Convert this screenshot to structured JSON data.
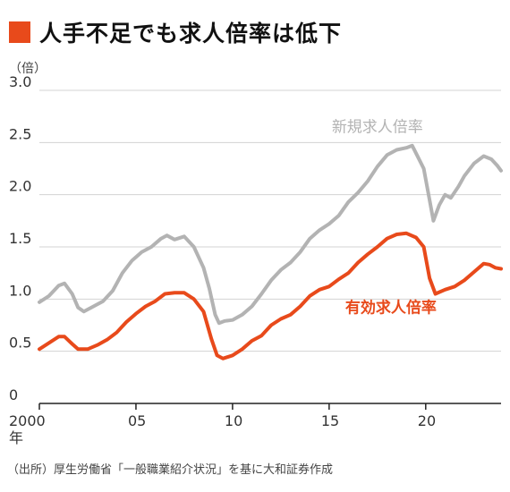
{
  "title": "人手不足でも求人倍率は低下",
  "unit": "（倍）",
  "source": "（出所）厚生労働省「一般職業紹介状況」を基に大和証券作成",
  "colors": {
    "accent": "#e84a1b",
    "gray": "#b3b3b3",
    "grid": "#d3d3d3",
    "axis": "#222222",
    "tick_text": "#333333"
  },
  "chart_data": {
    "type": "line",
    "title": "人手不足でも求人倍率は低下",
    "ylabel": "（倍）",
    "xlabel": "",
    "xlim": [
      2000,
      2023.9
    ],
    "ylim": [
      0,
      3.0
    ],
    "grid": true,
    "y_ticks": [
      {
        "value": 0,
        "label": "0"
      },
      {
        "value": 0.5,
        "label": "0.5"
      },
      {
        "value": 1.0,
        "label": "1.0"
      },
      {
        "value": 1.5,
        "label": "1.5"
      },
      {
        "value": 2.0,
        "label": "2.0"
      },
      {
        "value": 2.5,
        "label": "2.5"
      },
      {
        "value": 3.0,
        "label": "3.0"
      }
    ],
    "x_ticks": [
      {
        "value": 2000,
        "label": "2000",
        "sublabel": "年"
      },
      {
        "value": 2005,
        "label": "05"
      },
      {
        "value": 2010,
        "label": "10"
      },
      {
        "value": 2015,
        "label": "15"
      },
      {
        "value": 2020,
        "label": "20"
      }
    ],
    "series": [
      {
        "name": "新規求人倍率",
        "color": "#b3b3b3",
        "label_anchor": [
          2017.5,
          2.6
        ],
        "points": [
          [
            2000.0,
            0.97
          ],
          [
            2000.5,
            1.03
          ],
          [
            2001.0,
            1.13
          ],
          [
            2001.3,
            1.15
          ],
          [
            2001.7,
            1.05
          ],
          [
            2002.0,
            0.92
          ],
          [
            2002.3,
            0.88
          ],
          [
            2002.8,
            0.93
          ],
          [
            2003.3,
            0.98
          ],
          [
            2003.8,
            1.08
          ],
          [
            2004.3,
            1.25
          ],
          [
            2004.8,
            1.37
          ],
          [
            2005.3,
            1.45
          ],
          [
            2005.8,
            1.5
          ],
          [
            2006.3,
            1.58
          ],
          [
            2006.6,
            1.61
          ],
          [
            2007.0,
            1.57
          ],
          [
            2007.5,
            1.6
          ],
          [
            2008.0,
            1.5
          ],
          [
            2008.5,
            1.3
          ],
          [
            2008.8,
            1.1
          ],
          [
            2009.1,
            0.85
          ],
          [
            2009.3,
            0.77
          ],
          [
            2009.6,
            0.79
          ],
          [
            2010.0,
            0.8
          ],
          [
            2010.5,
            0.85
          ],
          [
            2011.0,
            0.93
          ],
          [
            2011.5,
            1.05
          ],
          [
            2012.0,
            1.18
          ],
          [
            2012.5,
            1.28
          ],
          [
            2013.0,
            1.35
          ],
          [
            2013.5,
            1.45
          ],
          [
            2014.0,
            1.58
          ],
          [
            2014.5,
            1.66
          ],
          [
            2015.0,
            1.72
          ],
          [
            2015.5,
            1.8
          ],
          [
            2016.0,
            1.93
          ],
          [
            2016.5,
            2.02
          ],
          [
            2017.0,
            2.13
          ],
          [
            2017.5,
            2.27
          ],
          [
            2018.0,
            2.38
          ],
          [
            2018.5,
            2.43
          ],
          [
            2019.0,
            2.45
          ],
          [
            2019.3,
            2.47
          ],
          [
            2019.6,
            2.36
          ],
          [
            2019.9,
            2.25
          ],
          [
            2020.2,
            1.95
          ],
          [
            2020.4,
            1.75
          ],
          [
            2020.7,
            1.9
          ],
          [
            2021.0,
            2.0
          ],
          [
            2021.3,
            1.97
          ],
          [
            2021.7,
            2.08
          ],
          [
            2022.0,
            2.18
          ],
          [
            2022.5,
            2.3
          ],
          [
            2023.0,
            2.37
          ],
          [
            2023.4,
            2.34
          ],
          [
            2023.7,
            2.28
          ],
          [
            2023.9,
            2.23
          ]
        ]
      },
      {
        "name": "有効求人倍率",
        "color": "#e84a1b",
        "label_anchor": [
          2018.2,
          0.87
        ],
        "points": [
          [
            2000.0,
            0.52
          ],
          [
            2000.5,
            0.58
          ],
          [
            2001.0,
            0.64
          ],
          [
            2001.3,
            0.64
          ],
          [
            2001.7,
            0.57
          ],
          [
            2002.0,
            0.52
          ],
          [
            2002.5,
            0.52
          ],
          [
            2003.0,
            0.56
          ],
          [
            2003.5,
            0.61
          ],
          [
            2004.0,
            0.68
          ],
          [
            2004.5,
            0.78
          ],
          [
            2005.0,
            0.86
          ],
          [
            2005.5,
            0.93
          ],
          [
            2006.0,
            0.98
          ],
          [
            2006.5,
            1.05
          ],
          [
            2007.0,
            1.06
          ],
          [
            2007.5,
            1.06
          ],
          [
            2008.0,
            1.0
          ],
          [
            2008.5,
            0.88
          ],
          [
            2008.9,
            0.62
          ],
          [
            2009.2,
            0.46
          ],
          [
            2009.5,
            0.43
          ],
          [
            2010.0,
            0.46
          ],
          [
            2010.5,
            0.52
          ],
          [
            2011.0,
            0.6
          ],
          [
            2011.5,
            0.65
          ],
          [
            2012.0,
            0.75
          ],
          [
            2012.5,
            0.81
          ],
          [
            2013.0,
            0.85
          ],
          [
            2013.5,
            0.93
          ],
          [
            2014.0,
            1.03
          ],
          [
            2014.5,
            1.09
          ],
          [
            2015.0,
            1.12
          ],
          [
            2015.5,
            1.19
          ],
          [
            2016.0,
            1.25
          ],
          [
            2016.5,
            1.35
          ],
          [
            2017.0,
            1.43
          ],
          [
            2017.5,
            1.5
          ],
          [
            2018.0,
            1.58
          ],
          [
            2018.5,
            1.62
          ],
          [
            2019.0,
            1.63
          ],
          [
            2019.5,
            1.59
          ],
          [
            2019.9,
            1.5
          ],
          [
            2020.2,
            1.2
          ],
          [
            2020.5,
            1.05
          ],
          [
            2021.0,
            1.09
          ],
          [
            2021.5,
            1.12
          ],
          [
            2022.0,
            1.18
          ],
          [
            2022.5,
            1.26
          ],
          [
            2023.0,
            1.34
          ],
          [
            2023.3,
            1.33
          ],
          [
            2023.6,
            1.3
          ],
          [
            2023.9,
            1.29
          ]
        ]
      }
    ]
  }
}
